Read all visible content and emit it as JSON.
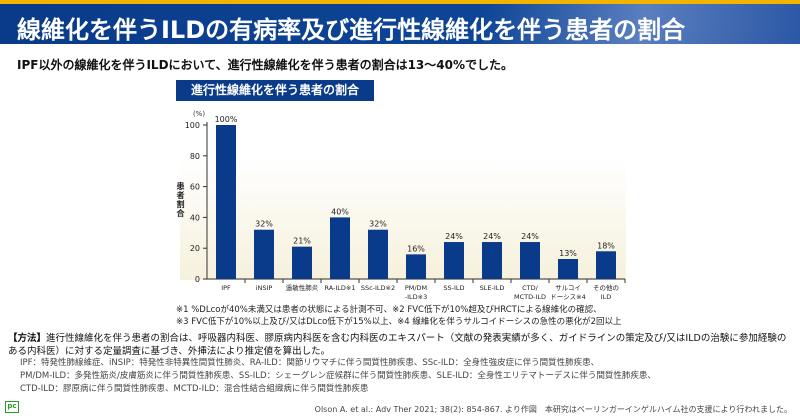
{
  "header": {
    "title": "線維化を伴うILDの有病率及び進行性線維化を伴う患者の割合"
  },
  "lead": "IPF以外の線維化を伴うILDにおいて、進行性線維化を伴う患者の割合は13～40%でした。",
  "chart_data": {
    "type": "bar",
    "title": "進行性線維化を伴う患者の割合",
    "ylabel": "患者割合",
    "yunit": "(%)",
    "ylim": [
      0,
      100
    ],
    "yticks": [
      "0",
      "20",
      "40",
      "60",
      "80",
      "100"
    ],
    "categories": [
      [
        "IPF"
      ],
      [
        "iNSIP"
      ],
      [
        "過敏性肺炎"
      ],
      [
        "RA-ILD※1"
      ],
      [
        "SSc-ILD※2"
      ],
      [
        "PM/DM",
        "-ILD※3"
      ],
      [
        "SS-ILD"
      ],
      [
        "SLE-ILD"
      ],
      [
        "CTD/",
        "MCTD-ILD"
      ],
      [
        "サルコイ",
        "ドーシス※4"
      ],
      [
        "その他の",
        "ILD"
      ]
    ],
    "values": [
      100,
      32,
      21,
      40,
      32,
      16,
      24,
      24,
      24,
      13,
      18
    ],
    "labels": [
      "100%",
      "32%",
      "21%",
      "40%",
      "32%",
      "16%",
      "24%",
      "24%",
      "24%",
      "13%",
      "18%"
    ],
    "bar_color": "#0a3a8a"
  },
  "notes": [
    "※1 %DLcoが40%未満又は患者の状態による計測不可、※2 FVC低下が10%超及びHRCTによる線維化の確認、",
    "※3 FVC低下が10%以上及び/又はDLco低下が15%以上、※4 線維化を伴うサルコイドーシスの急性の悪化が2回以上"
  ],
  "method": {
    "label": "【方法】",
    "text": "進行性線維化を伴う患者の割合は、呼吸器内科医、膠原病内科医を含む内科医のエキスパート（文献の発表実績が多く、ガイドラインの策定及び/又はILDの治験に参加経験のある内科医）に対する定量調査に基づき、外挿法により推定値を算出した。"
  },
  "abbreviations": [
    "IPF：特発性肺線維症、iNSIP：特発性非特異性間質性肺炎、RA-ILD：関節リウマチに伴う間質性肺疾患、SSc-ILD：全身性強皮症に伴う間質性肺疾患、",
    "PM/DM-ILD：多発性筋炎/皮膚筋炎に伴う間質性肺疾患、SS-ILD：シェーグレン症候群に伴う間質性肺疾患、SLE-ILD：全身性エリテマトーデスに伴う間質性肺疾患、",
    "CTD-ILD：膠原病に伴う間質性肺疾患、MCTD-ILD：混合性結合組織病に伴う間質性肺疾患"
  ],
  "logo": "PC",
  "citation": "Olson A. et al.: Adv Ther 2021; 38(2): 854-867. より作図　本研究はベーリンガーインゲルハイム社の支援により行われました。"
}
